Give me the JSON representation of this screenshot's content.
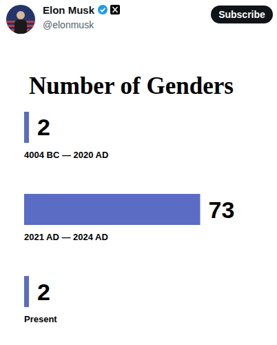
{
  "header": {
    "name": "Elon Musk",
    "handle": "@elonmusk",
    "button": "Subscribe"
  },
  "chart_data": {
    "type": "bar",
    "title": "Number of Genders",
    "categories": [
      "4004 BC — 2020 AD",
      "2021 AD — 2024 AD",
      "Present"
    ],
    "values": [
      2,
      73,
      2
    ],
    "color": "#5b6cc4",
    "orientation": "horizontal",
    "data_labels": true,
    "xlim": [
      0,
      100
    ]
  }
}
